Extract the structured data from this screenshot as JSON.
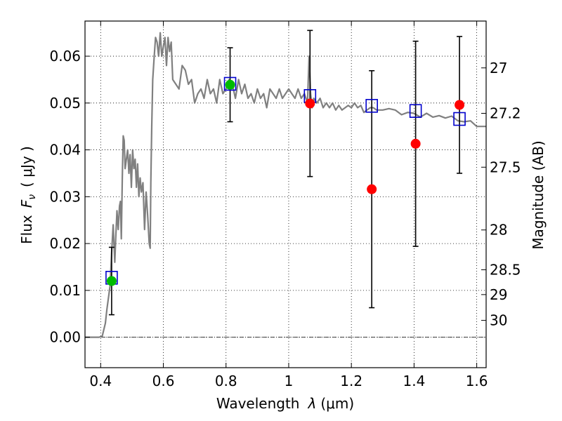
{
  "chart_data": {
    "type": "scatter",
    "title": "",
    "xlabel_text": "Wavelength",
    "xlabel_symbol": "λ",
    "xlabel_unit": "(μm)",
    "ylabel_text": "Flux",
    "ylabel_symbol": "F",
    "ylabel_subscript": "ν",
    "ylabel_unit": "( μJy )",
    "y2label": "Magnitude (AB)",
    "xlim": [
      0.35,
      1.63
    ],
    "ylim": [
      -0.0065,
      0.0675
    ],
    "grid": true,
    "x_ticks": [
      0.4,
      0.6,
      0.8,
      1.0,
      1.2,
      1.4,
      1.6
    ],
    "x_tick_labels": [
      "0.4",
      "0.6",
      "0.8",
      "1",
      "1.2",
      "1.4",
      "1.6"
    ],
    "y_ticks": [
      0.0,
      0.01,
      0.02,
      0.03,
      0.04,
      0.05,
      0.06
    ],
    "y_tick_labels": [
      "0.00",
      "0.01",
      "0.02",
      "0.03",
      "0.04",
      "0.05",
      "0.06"
    ],
    "y2_ticks": [
      {
        "flux": 0.0575,
        "label": "27"
      },
      {
        "flux": 0.0478,
        "label": "27.2"
      },
      {
        "flux": 0.0363,
        "label": "27.5"
      },
      {
        "flux": 0.0229,
        "label": "28"
      },
      {
        "flux": 0.0144,
        "label": "28.5"
      },
      {
        "flux": 0.0091,
        "label": "29"
      },
      {
        "flux": 0.0036,
        "label": "30"
      }
    ],
    "colors": {
      "model": "#808080",
      "observed": "#ff0000",
      "observed_green": "#00bb00",
      "model_box": "#0000cc",
      "errorbar": "#000000",
      "zero_line": "#000000"
    },
    "model_spectrum": {
      "x": [
        0.35,
        0.38,
        0.395,
        0.405,
        0.415,
        0.42,
        0.43,
        0.435,
        0.44,
        0.445,
        0.448,
        0.452,
        0.456,
        0.46,
        0.463,
        0.466,
        0.469,
        0.472,
        0.475,
        0.478,
        0.482,
        0.486,
        0.49,
        0.494,
        0.498,
        0.502,
        0.506,
        0.51,
        0.514,
        0.518,
        0.522,
        0.526,
        0.53,
        0.535,
        0.54,
        0.545,
        0.55,
        0.555,
        0.558,
        0.56,
        0.563,
        0.566,
        0.57,
        0.575,
        0.58,
        0.585,
        0.59,
        0.595,
        0.6,
        0.605,
        0.61,
        0.615,
        0.62,
        0.625,
        0.63,
        0.64,
        0.65,
        0.66,
        0.67,
        0.68,
        0.69,
        0.7,
        0.705,
        0.71,
        0.72,
        0.73,
        0.74,
        0.75,
        0.76,
        0.77,
        0.78,
        0.79,
        0.8,
        0.81,
        0.82,
        0.83,
        0.84,
        0.85,
        0.86,
        0.87,
        0.88,
        0.89,
        0.9,
        0.91,
        0.92,
        0.93,
        0.94,
        0.95,
        0.96,
        0.97,
        0.98,
        0.99,
        1.0,
        1.01,
        1.02,
        1.03,
        1.04,
        1.05,
        1.06,
        1.065,
        1.07,
        1.075,
        1.08,
        1.09,
        1.1,
        1.11,
        1.12,
        1.13,
        1.14,
        1.15,
        1.16,
        1.17,
        1.18,
        1.19,
        1.2,
        1.21,
        1.22,
        1.23,
        1.24,
        1.25,
        1.26,
        1.27,
        1.28,
        1.3,
        1.32,
        1.34,
        1.36,
        1.38,
        1.4,
        1.42,
        1.44,
        1.46,
        1.48,
        1.5,
        1.52,
        1.54,
        1.56,
        1.58,
        1.6,
        1.63
      ],
      "y": [
        0.0,
        0.0,
        0.0,
        0.0002,
        0.003,
        0.006,
        0.011,
        0.018,
        0.024,
        0.016,
        0.021,
        0.027,
        0.023,
        0.028,
        0.029,
        0.021,
        0.034,
        0.043,
        0.042,
        0.036,
        0.038,
        0.04,
        0.035,
        0.039,
        0.032,
        0.04,
        0.036,
        0.038,
        0.032,
        0.037,
        0.03,
        0.034,
        0.031,
        0.033,
        0.023,
        0.031,
        0.026,
        0.02,
        0.019,
        0.033,
        0.045,
        0.055,
        0.059,
        0.064,
        0.063,
        0.06,
        0.065,
        0.06,
        0.062,
        0.064,
        0.058,
        0.064,
        0.061,
        0.063,
        0.055,
        0.054,
        0.053,
        0.058,
        0.057,
        0.054,
        0.055,
        0.05,
        0.051,
        0.052,
        0.053,
        0.051,
        0.055,
        0.052,
        0.053,
        0.05,
        0.055,
        0.052,
        0.053,
        0.055,
        0.054,
        0.051,
        0.055,
        0.052,
        0.054,
        0.051,
        0.052,
        0.05,
        0.053,
        0.051,
        0.052,
        0.049,
        0.053,
        0.052,
        0.051,
        0.053,
        0.051,
        0.052,
        0.053,
        0.052,
        0.051,
        0.053,
        0.051,
        0.052,
        0.05,
        0.06,
        0.052,
        0.049,
        0.051,
        0.05,
        0.051,
        0.049,
        0.05,
        0.049,
        0.05,
        0.0485,
        0.0495,
        0.0485,
        0.049,
        0.0495,
        0.049,
        0.05,
        0.049,
        0.0495,
        0.048,
        0.0485,
        0.049,
        0.049,
        0.0485,
        0.0485,
        0.0488,
        0.0485,
        0.0475,
        0.048,
        0.0478,
        0.047,
        0.0478,
        0.047,
        0.0473,
        0.0468,
        0.0472,
        0.0462,
        0.046,
        0.0462,
        0.045,
        0.045
      ]
    },
    "model_photometry": {
      "x": [
        0.435,
        0.813,
        1.068,
        1.265,
        1.405,
        1.545
      ],
      "y": [
        0.0127,
        0.0541,
        0.0515,
        0.0494,
        0.0483,
        0.0466
      ]
    },
    "observed": {
      "x": [
        0.435,
        0.813,
        1.068,
        1.265,
        1.405,
        1.545
      ],
      "y": [
        0.012,
        0.0539,
        0.0499,
        0.0316,
        0.0413,
        0.0496
      ],
      "yerr": [
        0.0072,
        0.0079,
        0.0156,
        0.0253,
        0.0219,
        0.0146
      ],
      "marker_colors": [
        "#00bb00",
        "#00bb00",
        "#ff0000",
        "#ff0000",
        "#ff0000",
        "#ff0000"
      ]
    }
  }
}
